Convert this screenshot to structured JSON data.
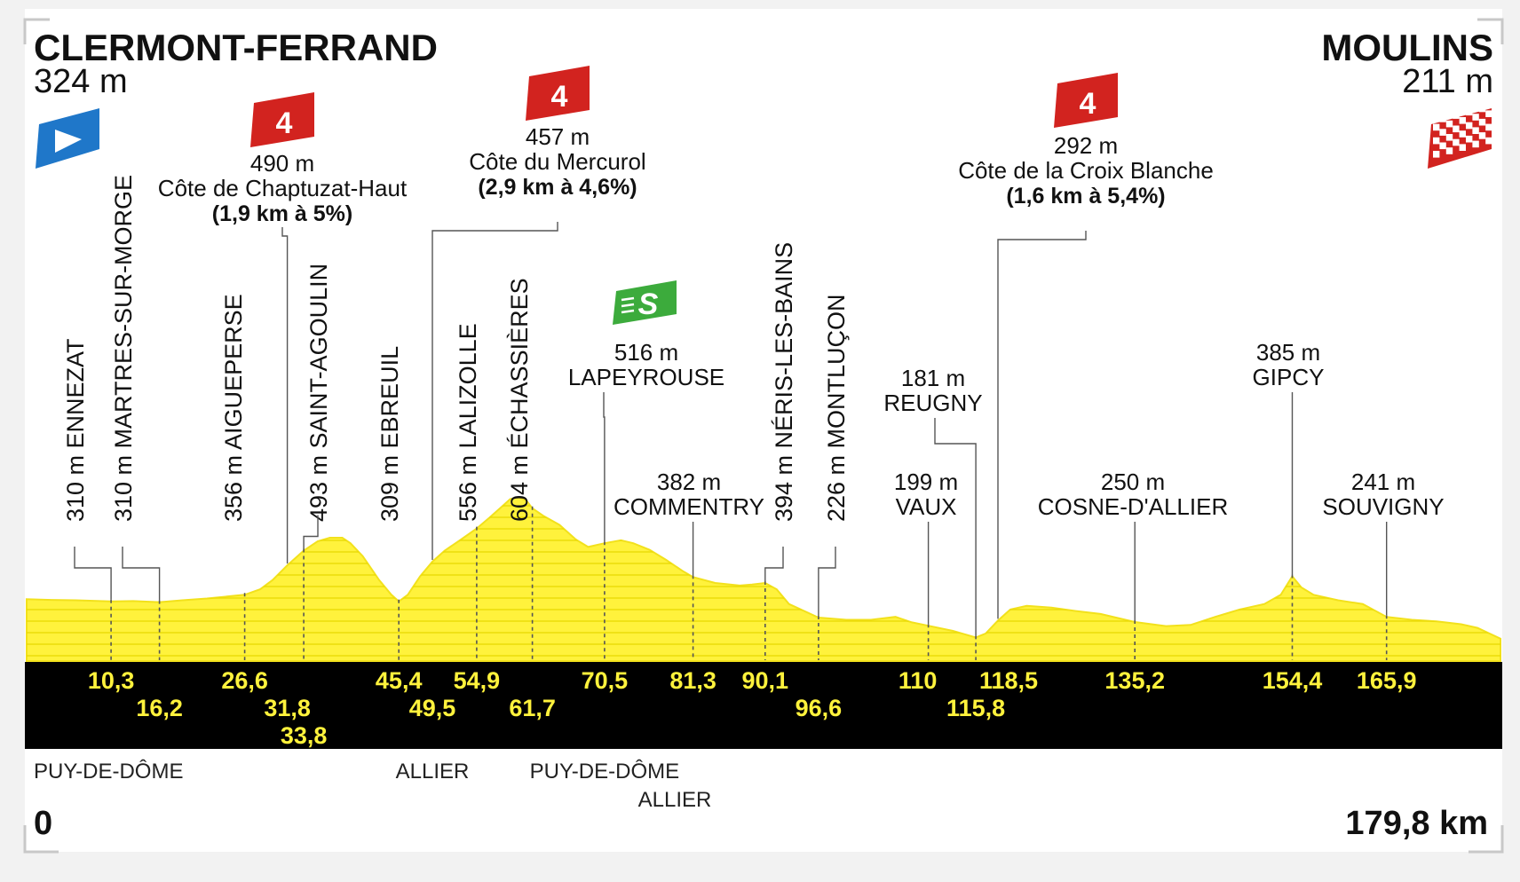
{
  "chart_data": {
    "type": "area",
    "start": {
      "name": "CLERMONT-FERRAND",
      "altitude": "324 m",
      "km": "0"
    },
    "finish": {
      "name": "MOULINS",
      "altitude": "211 m",
      "km": "179,8 km"
    },
    "xlim": [
      0,
      179.8
    ],
    "profile": [
      [
        0,
        318
      ],
      [
        3,
        316
      ],
      [
        6,
        315
      ],
      [
        10.3,
        312
      ],
      [
        13,
        313
      ],
      [
        16.2,
        310
      ],
      [
        19,
        315
      ],
      [
        22,
        320
      ],
      [
        26.6,
        330
      ],
      [
        28.5,
        345
      ],
      [
        30,
        370
      ],
      [
        31.8,
        410
      ],
      [
        33.8,
        450
      ],
      [
        35.5,
        475
      ],
      [
        37,
        485
      ],
      [
        38.5,
        485
      ],
      [
        39.5,
        470
      ],
      [
        41,
        435
      ],
      [
        43,
        370
      ],
      [
        44.5,
        330
      ],
      [
        45.4,
        312
      ],
      [
        46.5,
        330
      ],
      [
        48,
        380
      ],
      [
        49.5,
        420
      ],
      [
        51,
        450
      ],
      [
        53,
        480
      ],
      [
        54.9,
        510
      ],
      [
        56.5,
        540
      ],
      [
        58,
        570
      ],
      [
        59,
        590
      ],
      [
        60,
        595
      ],
      [
        61,
        585
      ],
      [
        61.7,
        565
      ],
      [
        63,
        545
      ],
      [
        65,
        520
      ],
      [
        67,
        480
      ],
      [
        68.5,
        460
      ],
      [
        70.5,
        470
      ],
      [
        72.5,
        478
      ],
      [
        74,
        470
      ],
      [
        76,
        452
      ],
      [
        78,
        425
      ],
      [
        80,
        395
      ],
      [
        81.3,
        378
      ],
      [
        84,
        362
      ],
      [
        87,
        355
      ],
      [
        88.5,
        358
      ],
      [
        90.1,
        362
      ],
      [
        91.5,
        345
      ],
      [
        93,
        305
      ],
      [
        96.6,
        268
      ],
      [
        100,
        262
      ],
      [
        103,
        262
      ],
      [
        106,
        270
      ],
      [
        108,
        255
      ],
      [
        110,
        246
      ],
      [
        113,
        232
      ],
      [
        115.8,
        214
      ],
      [
        117,
        225
      ],
      [
        118.5,
        260
      ],
      [
        120,
        290
      ],
      [
        122,
        300
      ],
      [
        125,
        295
      ],
      [
        128,
        286
      ],
      [
        131,
        278
      ],
      [
        135.2,
        256
      ],
      [
        139,
        245
      ],
      [
        142,
        248
      ],
      [
        145,
        270
      ],
      [
        148,
        290
      ],
      [
        151,
        305
      ],
      [
        153,
        330
      ],
      [
        154.4,
        380
      ],
      [
        155.5,
        350
      ],
      [
        157,
        330
      ],
      [
        160,
        315
      ],
      [
        163,
        305
      ],
      [
        165.9,
        270
      ],
      [
        169,
        262
      ],
      [
        172,
        258
      ],
      [
        175,
        250
      ],
      [
        177,
        240
      ],
      [
        179.8,
        211
      ]
    ],
    "towns": [
      {
        "km": 10.3,
        "km_label": "10,3",
        "label": "310 m ENNEZAT",
        "orientation": "vertical"
      },
      {
        "km": 16.2,
        "km_label": "16,2",
        "label": "310 m MARTRES-SUR-MORGE",
        "orientation": "vertical"
      },
      {
        "km": 26.6,
        "km_label": "26,6",
        "label": "356 m AIGUEPERSE",
        "orientation": "vertical"
      },
      {
        "km": 31.8,
        "km_label": "31,8",
        "label": "",
        "orientation": "none"
      },
      {
        "km": 33.8,
        "km_label": "33,8",
        "label": "493 m SAINT-AGOULIN",
        "orientation": "vertical"
      },
      {
        "km": 45.4,
        "km_label": "45,4",
        "label": "309 m EBREUIL",
        "orientation": "vertical"
      },
      {
        "km": 49.5,
        "km_label": "49,5",
        "label": "",
        "orientation": "none"
      },
      {
        "km": 54.9,
        "km_label": "54,9",
        "label": "556 m LALIZOLLE",
        "orientation": "vertical"
      },
      {
        "km": 61.7,
        "km_label": "61,7",
        "label": "604 m ÉCHASSIÈRES",
        "orientation": "vertical"
      },
      {
        "km": 70.5,
        "km_label": "70,5",
        "altitude": "516 m",
        "label": "LAPEYROUSE",
        "orientation": "horizontal",
        "sprint": true
      },
      {
        "km": 81.3,
        "km_label": "81,3",
        "altitude": "382 m",
        "label": "COMMENTRY",
        "orientation": "horizontal"
      },
      {
        "km": 90.1,
        "km_label": "90,1",
        "label": "394 m NÉRIS-LES-BAINS",
        "orientation": "vertical"
      },
      {
        "km": 96.6,
        "km_label": "96,6",
        "label": "226 m MONTLUÇON",
        "orientation": "vertical"
      },
      {
        "km": 110,
        "km_label": "110",
        "altitude": "199 m",
        "label": "VAUX",
        "orientation": "horizontal"
      },
      {
        "km": 115.8,
        "km_label": "115,8",
        "altitude": "181 m",
        "label": "REUGNY",
        "orientation": "horizontal"
      },
      {
        "km": 118.5,
        "km_label": "118,5",
        "label": "",
        "orientation": "none"
      },
      {
        "km": 135.2,
        "km_label": "135,2",
        "altitude": "250 m",
        "label": "COSNE-D'ALLIER",
        "orientation": "horizontal"
      },
      {
        "km": 154.4,
        "km_label": "154,4",
        "altitude": "385 m",
        "label": "GIPCY",
        "orientation": "horizontal"
      },
      {
        "km": 165.9,
        "km_label": "165,9",
        "altitude": "241 m",
        "label": "SOUVIGNY",
        "orientation": "horizontal"
      }
    ],
    "climbs": [
      {
        "category": "4",
        "altitude": "490 m",
        "name": "Côte de Chaptuzat-Haut",
        "detail": "(1,9 km à 5%)",
        "km": 31.8
      },
      {
        "category": "4",
        "altitude": "457 m",
        "name": "Côte du Mercurol",
        "detail": "(2,9 km à 4,6%)",
        "km": 49.5
      },
      {
        "category": "4",
        "altitude": "292 m",
        "name": "Côte de la Croix Blanche",
        "detail": "(1,6 km à 5,4%)",
        "km": 118.5
      }
    ],
    "sprint_label": "S",
    "departments": [
      {
        "km": 0,
        "label": "PUY-DE-DÔME",
        "align": "start"
      },
      {
        "km": 49.5,
        "label": "ALLIER",
        "align": "middle"
      },
      {
        "km": 70.5,
        "label": "PUY-DE-DÔME",
        "align": "middle"
      },
      {
        "km": 81.3,
        "label": "ALLIER",
        "align": "end"
      }
    ],
    "colors": {
      "profile": "#fff23c",
      "profile_edge": "#f2e11c",
      "band": "#000000",
      "km_text": "#fff23c",
      "climb_marker": "#d2231f",
      "sprint_marker": "#3cab3c",
      "start_flag": "#1f77c9",
      "finish_flag": "#d2231f"
    }
  }
}
